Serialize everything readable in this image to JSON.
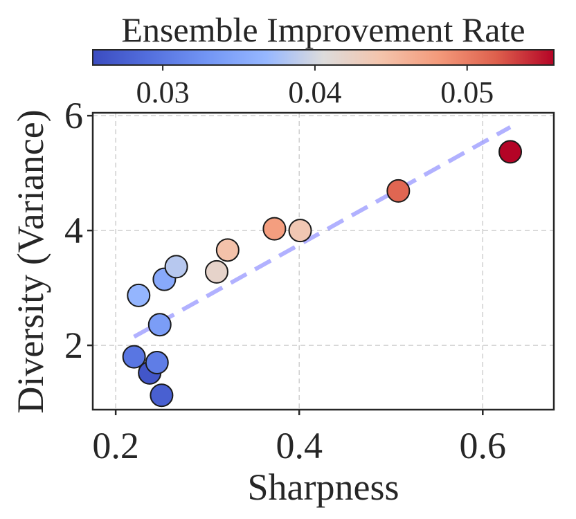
{
  "chart_data": {
    "type": "scatter",
    "xlabel": "Sharpness",
    "ylabel": "Diversity (Variance)",
    "xlim": [
      0.175,
      0.6775
    ],
    "ylim": [
      0.88,
      6.05
    ],
    "xticks": [
      0.2,
      0.4,
      0.6
    ],
    "xtick_labels": [
      "0.2",
      "0.4",
      "0.6"
    ],
    "yticks": [
      2,
      4,
      6
    ],
    "ytick_labels": [
      "2",
      "4",
      "6"
    ],
    "grid": true,
    "colorbar": {
      "label": "Ensemble Improvement Rate",
      "colormap": "coolwarm",
      "range": [
        0.0254,
        0.0557
      ],
      "ticks": [
        0.03,
        0.04,
        0.05
      ],
      "tick_labels": [
        "0.03",
        "0.04",
        "0.05"
      ],
      "position": "top"
    },
    "points": [
      {
        "x": 0.22,
        "y": 1.8,
        "c": 0.0298
      },
      {
        "x": 0.237,
        "y": 1.52,
        "c": 0.0265
      },
      {
        "x": 0.245,
        "y": 1.7,
        "c": 0.0305
      },
      {
        "x": 0.25,
        "y": 1.13,
        "c": 0.0275
      },
      {
        "x": 0.248,
        "y": 2.36,
        "c": 0.0338
      },
      {
        "x": 0.225,
        "y": 2.87,
        "c": 0.0365
      },
      {
        "x": 0.253,
        "y": 3.15,
        "c": 0.0352
      },
      {
        "x": 0.266,
        "y": 3.37,
        "c": 0.0385
      },
      {
        "x": 0.31,
        "y": 3.28,
        "c": 0.042
      },
      {
        "x": 0.322,
        "y": 3.66,
        "c": 0.0445
      },
      {
        "x": 0.373,
        "y": 4.03,
        "c": 0.0478
      },
      {
        "x": 0.401,
        "y": 4.0,
        "c": 0.0438
      },
      {
        "x": 0.508,
        "y": 4.69,
        "c": 0.0515
      },
      {
        "x": 0.63,
        "y": 5.37,
        "c": 0.0557
      }
    ],
    "trend_line": {
      "x": [
        0.22,
        0.63
      ],
      "y": [
        2.15,
        5.8
      ],
      "color": "#8888ff",
      "style": "dashed"
    }
  }
}
